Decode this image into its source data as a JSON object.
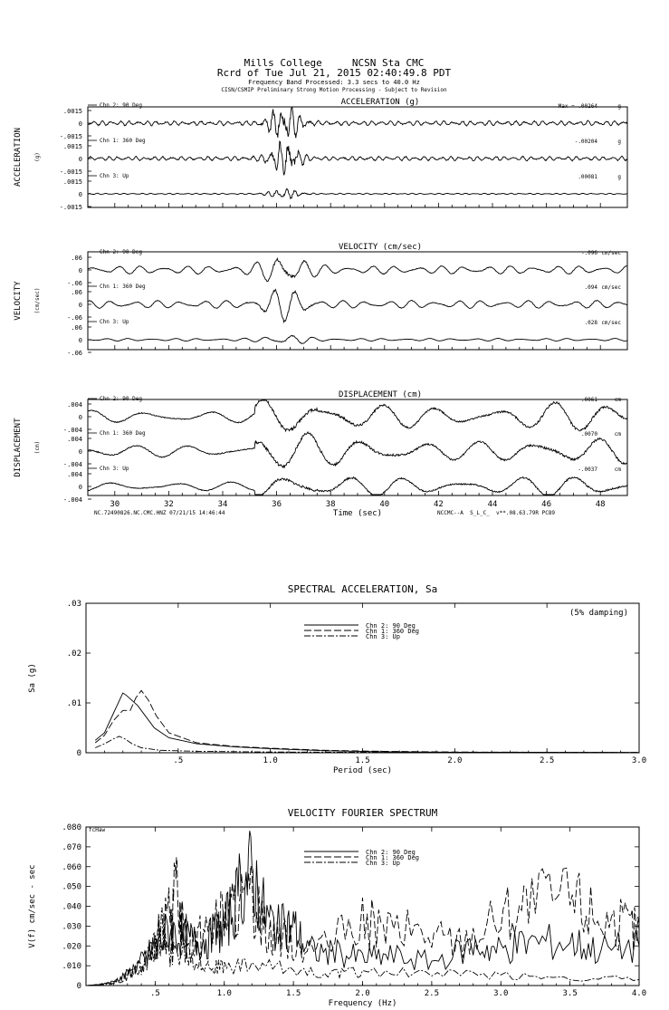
{
  "header": {
    "station_line": "Mills College     NCSN Sta CMC",
    "record_line": "Rcrd of Tue Jul 21, 2015 02:40:49.8 PDT",
    "band_line": "Frequency Band Processed: 3.3 secs to 40.0 Hz",
    "prelim_line": "CISN/CSMIP Preliminary Strong Motion Processing - Subject to Revision"
  },
  "footer": {
    "left_id": "NC.72490826.NC.CMC.HNZ 07/21/15 14:46:44",
    "right_id": "NCCMC--A  S_L_C_  v**.08.63.79R PC89"
  },
  "chart_data": [
    {
      "type": "line",
      "title": "ACCELERATION (g)",
      "ylabel": "ACCELERATION",
      "yunit": "(g)",
      "y_ticks": [
        ".0015",
        "0",
        "-.0015"
      ],
      "ylim": [
        -0.0015,
        0.0015
      ],
      "xlim": [
        29,
        49
      ],
      "series": [
        {
          "name": "Chn 2: 90 Deg",
          "max_prefix": "Max =",
          "max": ".00264",
          "max_unit": "g"
        },
        {
          "name": "Chn 1: 360 Deg",
          "max": "-.00204",
          "max_unit": "g"
        },
        {
          "name": "Chn 3: Up",
          "max": ".00081",
          "max_unit": "g"
        }
      ]
    },
    {
      "type": "line",
      "title": "VELOCITY (cm/sec)",
      "ylabel": "VELOCITY",
      "yunit": "(cm/sec)",
      "y_ticks": [
        ".06",
        "0",
        "-.06"
      ],
      "ylim": [
        -0.06,
        0.06
      ],
      "xlim": [
        29,
        49
      ],
      "series": [
        {
          "name": "Chn 2: 90 Deg",
          "max": "-.096",
          "max_unit": "cm/sec"
        },
        {
          "name": "Chn 1: 360 Deg",
          "max": ".094",
          "max_unit": "cm/sec"
        },
        {
          "name": "Chn 3: Up",
          "max": ".028",
          "max_unit": "cm/sec"
        }
      ]
    },
    {
      "type": "line",
      "title": "DISPLACEMENT (cm)",
      "ylabel": "DISPLACEMENT",
      "yunit": "(cm)",
      "y_ticks": [
        ".004",
        "0",
        "-.004"
      ],
      "ylim": [
        -0.004,
        0.004
      ],
      "xlim": [
        29,
        49
      ],
      "xlabel": "Time (sec)",
      "x_ticks": [
        "30",
        "32",
        "34",
        "36",
        "38",
        "40",
        "42",
        "44",
        "46",
        "48"
      ],
      "series": [
        {
          "name": "Chn 2: 90 Deg",
          "max": ".0061",
          "max_unit": "cm"
        },
        {
          "name": "Chn 1: 360 Deg",
          "max": ".0070",
          "max_unit": "cm"
        },
        {
          "name": "Chn 3: Up",
          "max": "-.0037",
          "max_unit": "cm"
        }
      ]
    },
    {
      "type": "line",
      "title": "SPECTRAL ACCELERATION, Sa",
      "xlabel": "Period (sec)",
      "ylabel": "Sa (g)",
      "annotation": "(5% damping)",
      "xlim": [
        0,
        3.0
      ],
      "ylim": [
        0,
        0.03
      ],
      "x_ticks": [
        ".5",
        "1.0",
        "1.5",
        "2.0",
        "2.5",
        "3.0"
      ],
      "y_ticks": [
        ".03",
        ".02",
        ".01",
        "0"
      ],
      "series": [
        {
          "name": "Chn 2: 90 Deg",
          "style": "solid",
          "points": [
            [
              0.05,
              0.0025
            ],
            [
              0.1,
              0.004
            ],
            [
              0.15,
              0.008
            ],
            [
              0.2,
              0.012
            ],
            [
              0.22,
              0.0115
            ],
            [
              0.25,
              0.0105
            ],
            [
              0.28,
              0.0095
            ],
            [
              0.32,
              0.0075
            ],
            [
              0.37,
              0.005
            ],
            [
              0.45,
              0.003
            ],
            [
              0.6,
              0.0018
            ],
            [
              0.8,
              0.0012
            ],
            [
              1.0,
              0.0008
            ],
            [
              1.3,
              0.0004
            ],
            [
              1.6,
              0.0002
            ],
            [
              2.0,
              0.0001
            ],
            [
              3.0,
              5e-05
            ]
          ]
        },
        {
          "name": "Chn 1: 360 Deg",
          "style": "dashed",
          "points": [
            [
              0.05,
              0.002
            ],
            [
              0.1,
              0.0035
            ],
            [
              0.15,
              0.0065
            ],
            [
              0.2,
              0.0085
            ],
            [
              0.24,
              0.0085
            ],
            [
              0.27,
              0.011
            ],
            [
              0.3,
              0.0125
            ],
            [
              0.34,
              0.0105
            ],
            [
              0.38,
              0.0075
            ],
            [
              0.45,
              0.004
            ],
            [
              0.6,
              0.002
            ],
            [
              0.8,
              0.0013
            ],
            [
              1.0,
              0.0009
            ],
            [
              1.3,
              0.0005
            ],
            [
              1.6,
              0.0003
            ],
            [
              2.0,
              0.00015
            ],
            [
              3.0,
              5e-05
            ]
          ]
        },
        {
          "name": "Chn 3: Up",
          "style": "dashdot",
          "points": [
            [
              0.05,
              0.001
            ],
            [
              0.1,
              0.0018
            ],
            [
              0.15,
              0.0028
            ],
            [
              0.18,
              0.0033
            ],
            [
              0.21,
              0.0028
            ],
            [
              0.25,
              0.0018
            ],
            [
              0.3,
              0.001
            ],
            [
              0.4,
              0.0005
            ],
            [
              0.6,
              0.0003
            ],
            [
              1.0,
              0.00015
            ],
            [
              1.5,
              0.0001
            ],
            [
              3.0,
              5e-05
            ]
          ]
        }
      ]
    },
    {
      "type": "line",
      "title": "VELOCITY FOURIER SPECTRUM",
      "xlabel": "Frequency (Hz)",
      "ylabel": "V(f)  cm/sec - sec",
      "corner_label": "fcHaw",
      "xlim": [
        0,
        4.0
      ],
      "ylim": [
        0,
        0.08
      ],
      "x_ticks": [
        ".5",
        "1.0",
        "1.5",
        "2.0",
        "2.5",
        "3.0",
        "3.5",
        "4.0"
      ],
      "y_ticks": [
        ".080",
        ".070",
        ".060",
        ".050",
        ".040",
        ".030",
        ".020",
        ".010",
        "0"
      ],
      "series": [
        {
          "name": "Chn 2: 90 Deg",
          "style": "solid",
          "points": [
            [
              0.0,
              0.0
            ],
            [
              0.1,
              0.0005
            ],
            [
              0.2,
              0.002
            ],
            [
              0.3,
              0.006
            ],
            [
              0.4,
              0.012
            ],
            [
              0.5,
              0.02
            ],
            [
              0.6,
              0.028
            ],
            [
              0.7,
              0.024
            ],
            [
              0.8,
              0.022
            ],
            [
              0.9,
              0.024
            ],
            [
              1.0,
              0.03
            ],
            [
              1.1,
              0.045
            ],
            [
              1.2,
              0.058
            ],
            [
              1.3,
              0.035
            ],
            [
              1.4,
              0.028
            ],
            [
              1.5,
              0.03
            ],
            [
              1.6,
              0.018
            ],
            [
              1.8,
              0.016
            ],
            [
              2.0,
              0.014
            ],
            [
              2.2,
              0.015
            ],
            [
              2.5,
              0.012
            ],
            [
              2.8,
              0.02
            ],
            [
              3.0,
              0.018
            ],
            [
              3.2,
              0.022
            ],
            [
              3.5,
              0.022
            ],
            [
              3.7,
              0.018
            ],
            [
              4.0,
              0.02
            ]
          ]
        },
        {
          "name": "Chn 1: 360 Deg",
          "style": "dashed",
          "points": [
            [
              0.0,
              0.0
            ],
            [
              0.1,
              0.0004
            ],
            [
              0.2,
              0.0015
            ],
            [
              0.3,
              0.005
            ],
            [
              0.4,
              0.01
            ],
            [
              0.5,
              0.02
            ],
            [
              0.6,
              0.035
            ],
            [
              0.65,
              0.048
            ],
            [
              0.7,
              0.03
            ],
            [
              0.8,
              0.025
            ],
            [
              0.9,
              0.03
            ],
            [
              1.0,
              0.035
            ],
            [
              1.1,
              0.04
            ],
            [
              1.2,
              0.042
            ],
            [
              1.3,
              0.03
            ],
            [
              1.4,
              0.025
            ],
            [
              1.5,
              0.022
            ],
            [
              1.7,
              0.018
            ],
            [
              2.0,
              0.032
            ],
            [
              2.2,
              0.028
            ],
            [
              2.5,
              0.025
            ],
            [
              2.7,
              0.022
            ],
            [
              3.0,
              0.035
            ],
            [
              3.2,
              0.04
            ],
            [
              3.5,
              0.044
            ],
            [
              3.7,
              0.035
            ],
            [
              3.9,
              0.03
            ],
            [
              4.0,
              0.028
            ]
          ]
        },
        {
          "name": "Chn 3: Up",
          "style": "dashdot",
          "points": [
            [
              0.0,
              0.0
            ],
            [
              0.1,
              0.0003
            ],
            [
              0.2,
              0.001
            ],
            [
              0.3,
              0.004
            ],
            [
              0.4,
              0.009
            ],
            [
              0.5,
              0.02
            ],
            [
              0.55,
              0.03
            ],
            [
              0.6,
              0.015
            ],
            [
              0.7,
              0.02
            ],
            [
              0.8,
              0.012
            ],
            [
              0.9,
              0.01
            ],
            [
              1.0,
              0.009
            ],
            [
              1.2,
              0.01
            ],
            [
              1.5,
              0.008
            ],
            [
              1.8,
              0.006
            ],
            [
              2.0,
              0.007
            ],
            [
              2.5,
              0.006
            ],
            [
              3.0,
              0.005
            ],
            [
              3.5,
              0.004
            ],
            [
              4.0,
              0.003
            ]
          ]
        }
      ]
    }
  ]
}
